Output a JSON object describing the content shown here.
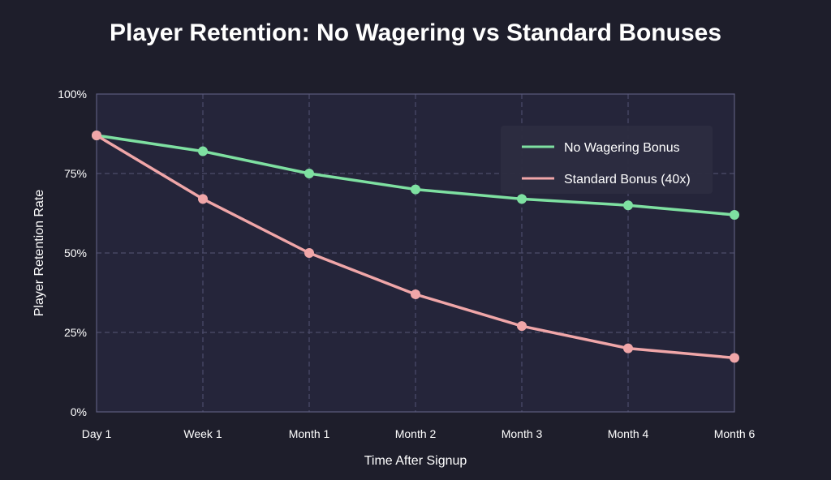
{
  "chart_data": {
    "type": "line",
    "title": "Player Retention: No Wagering vs Standard Bonuses",
    "xlabel": "Time After Signup",
    "ylabel": "Player Retention Rate",
    "categories": [
      "Day 1",
      "Week 1",
      "Month 1",
      "Month 2",
      "Month 3",
      "Month 4",
      "Month 6"
    ],
    "y_ticks": [
      "0%",
      "25%",
      "50%",
      "75%",
      "100%"
    ],
    "ylim": [
      0,
      100
    ],
    "grid": true,
    "legend_position": "top-right",
    "series": [
      {
        "name": "No Wagering Bonus",
        "color": "#7ee0a1",
        "values": [
          87,
          82,
          75,
          70,
          67,
          65,
          62
        ]
      },
      {
        "name": "Standard Bonus (40x)",
        "color": "#f0a6a8",
        "values": [
          87,
          67,
          50,
          37,
          27,
          20,
          17
        ]
      }
    ]
  }
}
